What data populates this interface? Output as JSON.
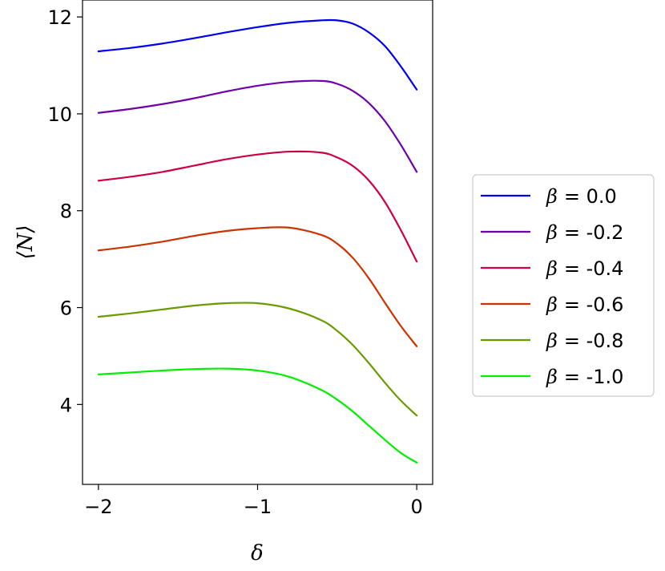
{
  "chart_data": {
    "type": "line",
    "xlabel": "δ",
    "ylabel": "⟨N⟩",
    "xlim": [
      -2.1,
      0.1
    ],
    "ylim": [
      2.35,
      12.35
    ],
    "xticks": [
      -2,
      -1,
      0
    ],
    "xtick_labels": [
      "−2",
      "−1",
      "0"
    ],
    "yticks": [
      4,
      6,
      8,
      10,
      12
    ],
    "ytick_labels": [
      "4",
      "6",
      "8",
      "10",
      "12"
    ],
    "grid": false,
    "legend_position": "right, outside plot",
    "legend_symbol": "β",
    "x": [
      -2.0,
      -1.8,
      -1.6,
      -1.4,
      -1.2,
      -1.0,
      -0.8,
      -0.6,
      -0.5,
      -0.4,
      -0.3,
      -0.2,
      -0.1,
      0.0
    ],
    "series": [
      {
        "name": "= 0.0",
        "color": "#0000ee",
        "values": [
          11.29,
          11.36,
          11.45,
          11.56,
          11.68,
          11.79,
          11.88,
          11.93,
          11.93,
          11.86,
          11.68,
          11.4,
          10.98,
          10.5
        ]
      },
      {
        "name": "= -0.2",
        "color": "#7000aa",
        "values": [
          10.02,
          10.1,
          10.2,
          10.32,
          10.46,
          10.58,
          10.66,
          10.68,
          10.62,
          10.47,
          10.22,
          9.85,
          9.36,
          8.8
        ]
      },
      {
        "name": "= -0.4",
        "color": "#cc0044",
        "values": [
          8.62,
          8.7,
          8.8,
          8.93,
          9.06,
          9.16,
          9.22,
          9.2,
          9.1,
          8.92,
          8.62,
          8.18,
          7.6,
          6.95
        ]
      },
      {
        "name": "= -0.6",
        "color": "#cc3300",
        "values": [
          7.18,
          7.26,
          7.36,
          7.48,
          7.58,
          7.64,
          7.65,
          7.5,
          7.32,
          7.02,
          6.6,
          6.1,
          5.62,
          5.2
        ]
      },
      {
        "name": "= -0.8",
        "color": "#6b9b00",
        "values": [
          5.81,
          5.88,
          5.96,
          6.04,
          6.09,
          6.09,
          5.98,
          5.74,
          5.52,
          5.22,
          4.85,
          4.45,
          4.08,
          3.77
        ]
      },
      {
        "name": "= -1.0",
        "color": "#00ee00",
        "values": [
          4.62,
          4.66,
          4.7,
          4.73,
          4.74,
          4.7,
          4.57,
          4.3,
          4.1,
          3.85,
          3.56,
          3.27,
          3.0,
          2.8
        ]
      }
    ]
  }
}
